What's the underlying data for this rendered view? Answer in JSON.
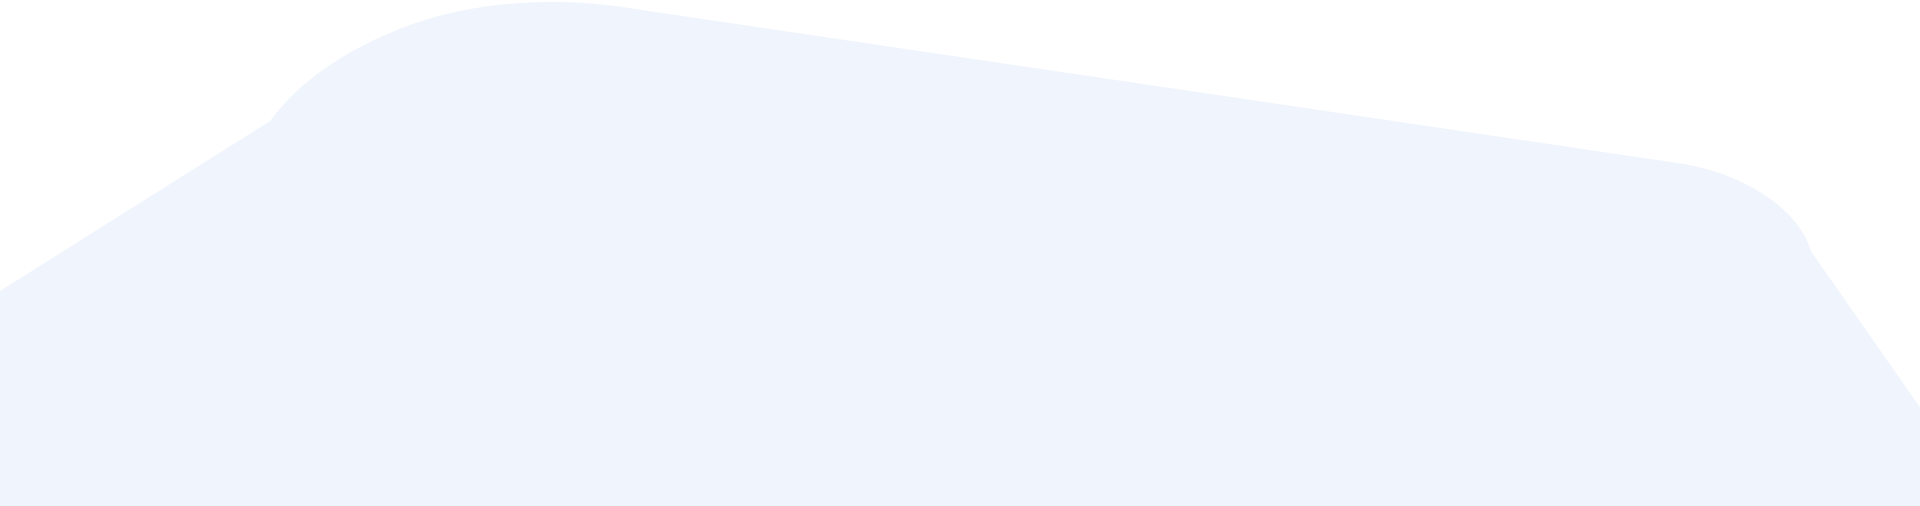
{
  "background": {
    "page_color": "#ffffff",
    "shape_color": "#f0f5fd"
  }
}
